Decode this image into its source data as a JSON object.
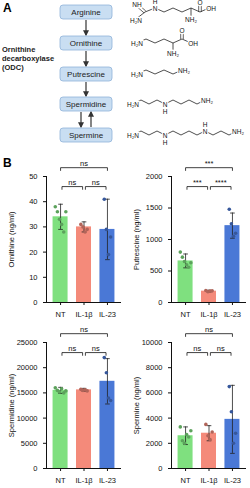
{
  "diagram": {
    "label": "A",
    "enzyme": "Ornithine decarboxylase (ODC)",
    "nodes": [
      {
        "name": "Arginine",
        "labels": [
          "NH",
          "H₂N",
          "N",
          "H",
          "O",
          "OH",
          "NH₂"
        ]
      },
      {
        "name": "Ornithine",
        "labels": [
          "H₂N",
          "O",
          "OH",
          "NH₂"
        ]
      },
      {
        "name": "Putrescine",
        "labels": [
          "H₂N",
          "NH₂"
        ]
      },
      {
        "name": "Spermidine",
        "labels": [
          "H₂N",
          "N",
          "H",
          "NH₂"
        ]
      },
      {
        "name": "Spermine",
        "labels": [
          "H₂N",
          "N",
          "H",
          "N",
          "H",
          "NH₂"
        ]
      }
    ]
  },
  "panel_label": "B",
  "chart_data": [
    {
      "type": "bar",
      "ylabel": "Ornithine (ng/ml)",
      "categories": [
        "NT",
        "IL-1β",
        "IL-23"
      ],
      "values": [
        34,
        30,
        29
      ],
      "error": [
        5,
        2,
        12
      ],
      "points": [
        [
          38,
          36,
          33,
          31,
          28,
          36
        ],
        [
          31,
          30,
          28,
          29
        ],
        [
          41,
          29,
          19,
          26
        ]
      ],
      "colors": [
        "#7fe07f",
        "#f48a7a",
        "#4a78d6"
      ],
      "ylim": [
        0,
        50
      ],
      "yticks": [
        0,
        10,
        20,
        30,
        40,
        50
      ],
      "comparisons": [
        {
          "groups": [
            "NT",
            "IL-1β"
          ],
          "label": "ns"
        },
        {
          "groups": [
            "IL-1β",
            "IL-23"
          ],
          "label": "ns"
        },
        {
          "groups": [
            "NT",
            "IL-23"
          ],
          "label": "ns"
        }
      ]
    },
    {
      "type": "bar",
      "ylabel": "Putrescine (ng/ml)",
      "categories": [
        "NT",
        "IL-1β",
        "IL-23"
      ],
      "values": [
        660,
        180,
        1220
      ],
      "error": [
        110,
        15,
        200
      ],
      "points": [
        [
          800,
          720,
          650,
          600,
          560,
          630
        ],
        [
          190,
          170,
          180,
          185
        ],
        [
          1480,
          1250,
          1050,
          1100
        ]
      ],
      "colors": [
        "#7fe07f",
        "#f48a7a",
        "#4a78d6"
      ],
      "ylim": [
        0,
        2000
      ],
      "yticks": [
        0,
        500,
        1000,
        1500,
        2000
      ],
      "comparisons": [
        {
          "groups": [
            "NT",
            "IL-1β"
          ],
          "label": "***"
        },
        {
          "groups": [
            "IL-1β",
            "IL-23"
          ],
          "label": "****"
        },
        {
          "groups": [
            "NT",
            "IL-23"
          ],
          "label": "***"
        }
      ]
    },
    {
      "type": "bar",
      "ylabel": "Spermidine (ng/ml)",
      "categories": [
        "NT",
        "IL-1β",
        "IL-23"
      ],
      "values": [
        15500,
        15600,
        17300
      ],
      "error": [
        600,
        300,
        4500
      ],
      "points": [
        [
          16000,
          15500,
          15200,
          15800,
          15000,
          15400
        ],
        [
          15700,
          15500,
          15600,
          15400
        ],
        [
          22000,
          19000,
          14000,
          13500
        ]
      ],
      "colors": [
        "#7fe07f",
        "#f48a7a",
        "#4a78d6"
      ],
      "ylim": [
        0,
        25000
      ],
      "yticks": [
        0,
        5000,
        10000,
        15000,
        20000,
        25000
      ],
      "comparisons": [
        {
          "groups": [
            "NT",
            "IL-1β"
          ],
          "label": "ns"
        },
        {
          "groups": [
            "IL-1β",
            "IL-23"
          ],
          "label": "ns"
        },
        {
          "groups": [
            "NT",
            "IL-23"
          ],
          "label": "ns"
        }
      ]
    },
    {
      "type": "bar",
      "ylabel": "Spermine (ng/ml)",
      "categories": [
        "NT",
        "IL-1β",
        "IL-23"
      ],
      "values": [
        2600,
        2800,
        3900
      ],
      "error": [
        700,
        600,
        2700
      ],
      "points": [
        [
          3300,
          2200,
          2000,
          2700,
          2500,
          3000
        ],
        [
          3500,
          2600,
          2300,
          2900
        ],
        [
          6500,
          4500,
          2000,
          2800
        ]
      ],
      "colors": [
        "#7fe07f",
        "#f48a7a",
        "#4a78d6"
      ],
      "ylim": [
        0,
        10000
      ],
      "yticks": [
        0,
        2000,
        4000,
        6000,
        8000,
        10000
      ],
      "comparisons": [
        {
          "groups": [
            "NT",
            "IL-1β"
          ],
          "label": "ns"
        },
        {
          "groups": [
            "IL-1β",
            "IL-23"
          ],
          "label": "ns"
        },
        {
          "groups": [
            "NT",
            "IL-23"
          ],
          "label": "ns"
        }
      ]
    }
  ]
}
